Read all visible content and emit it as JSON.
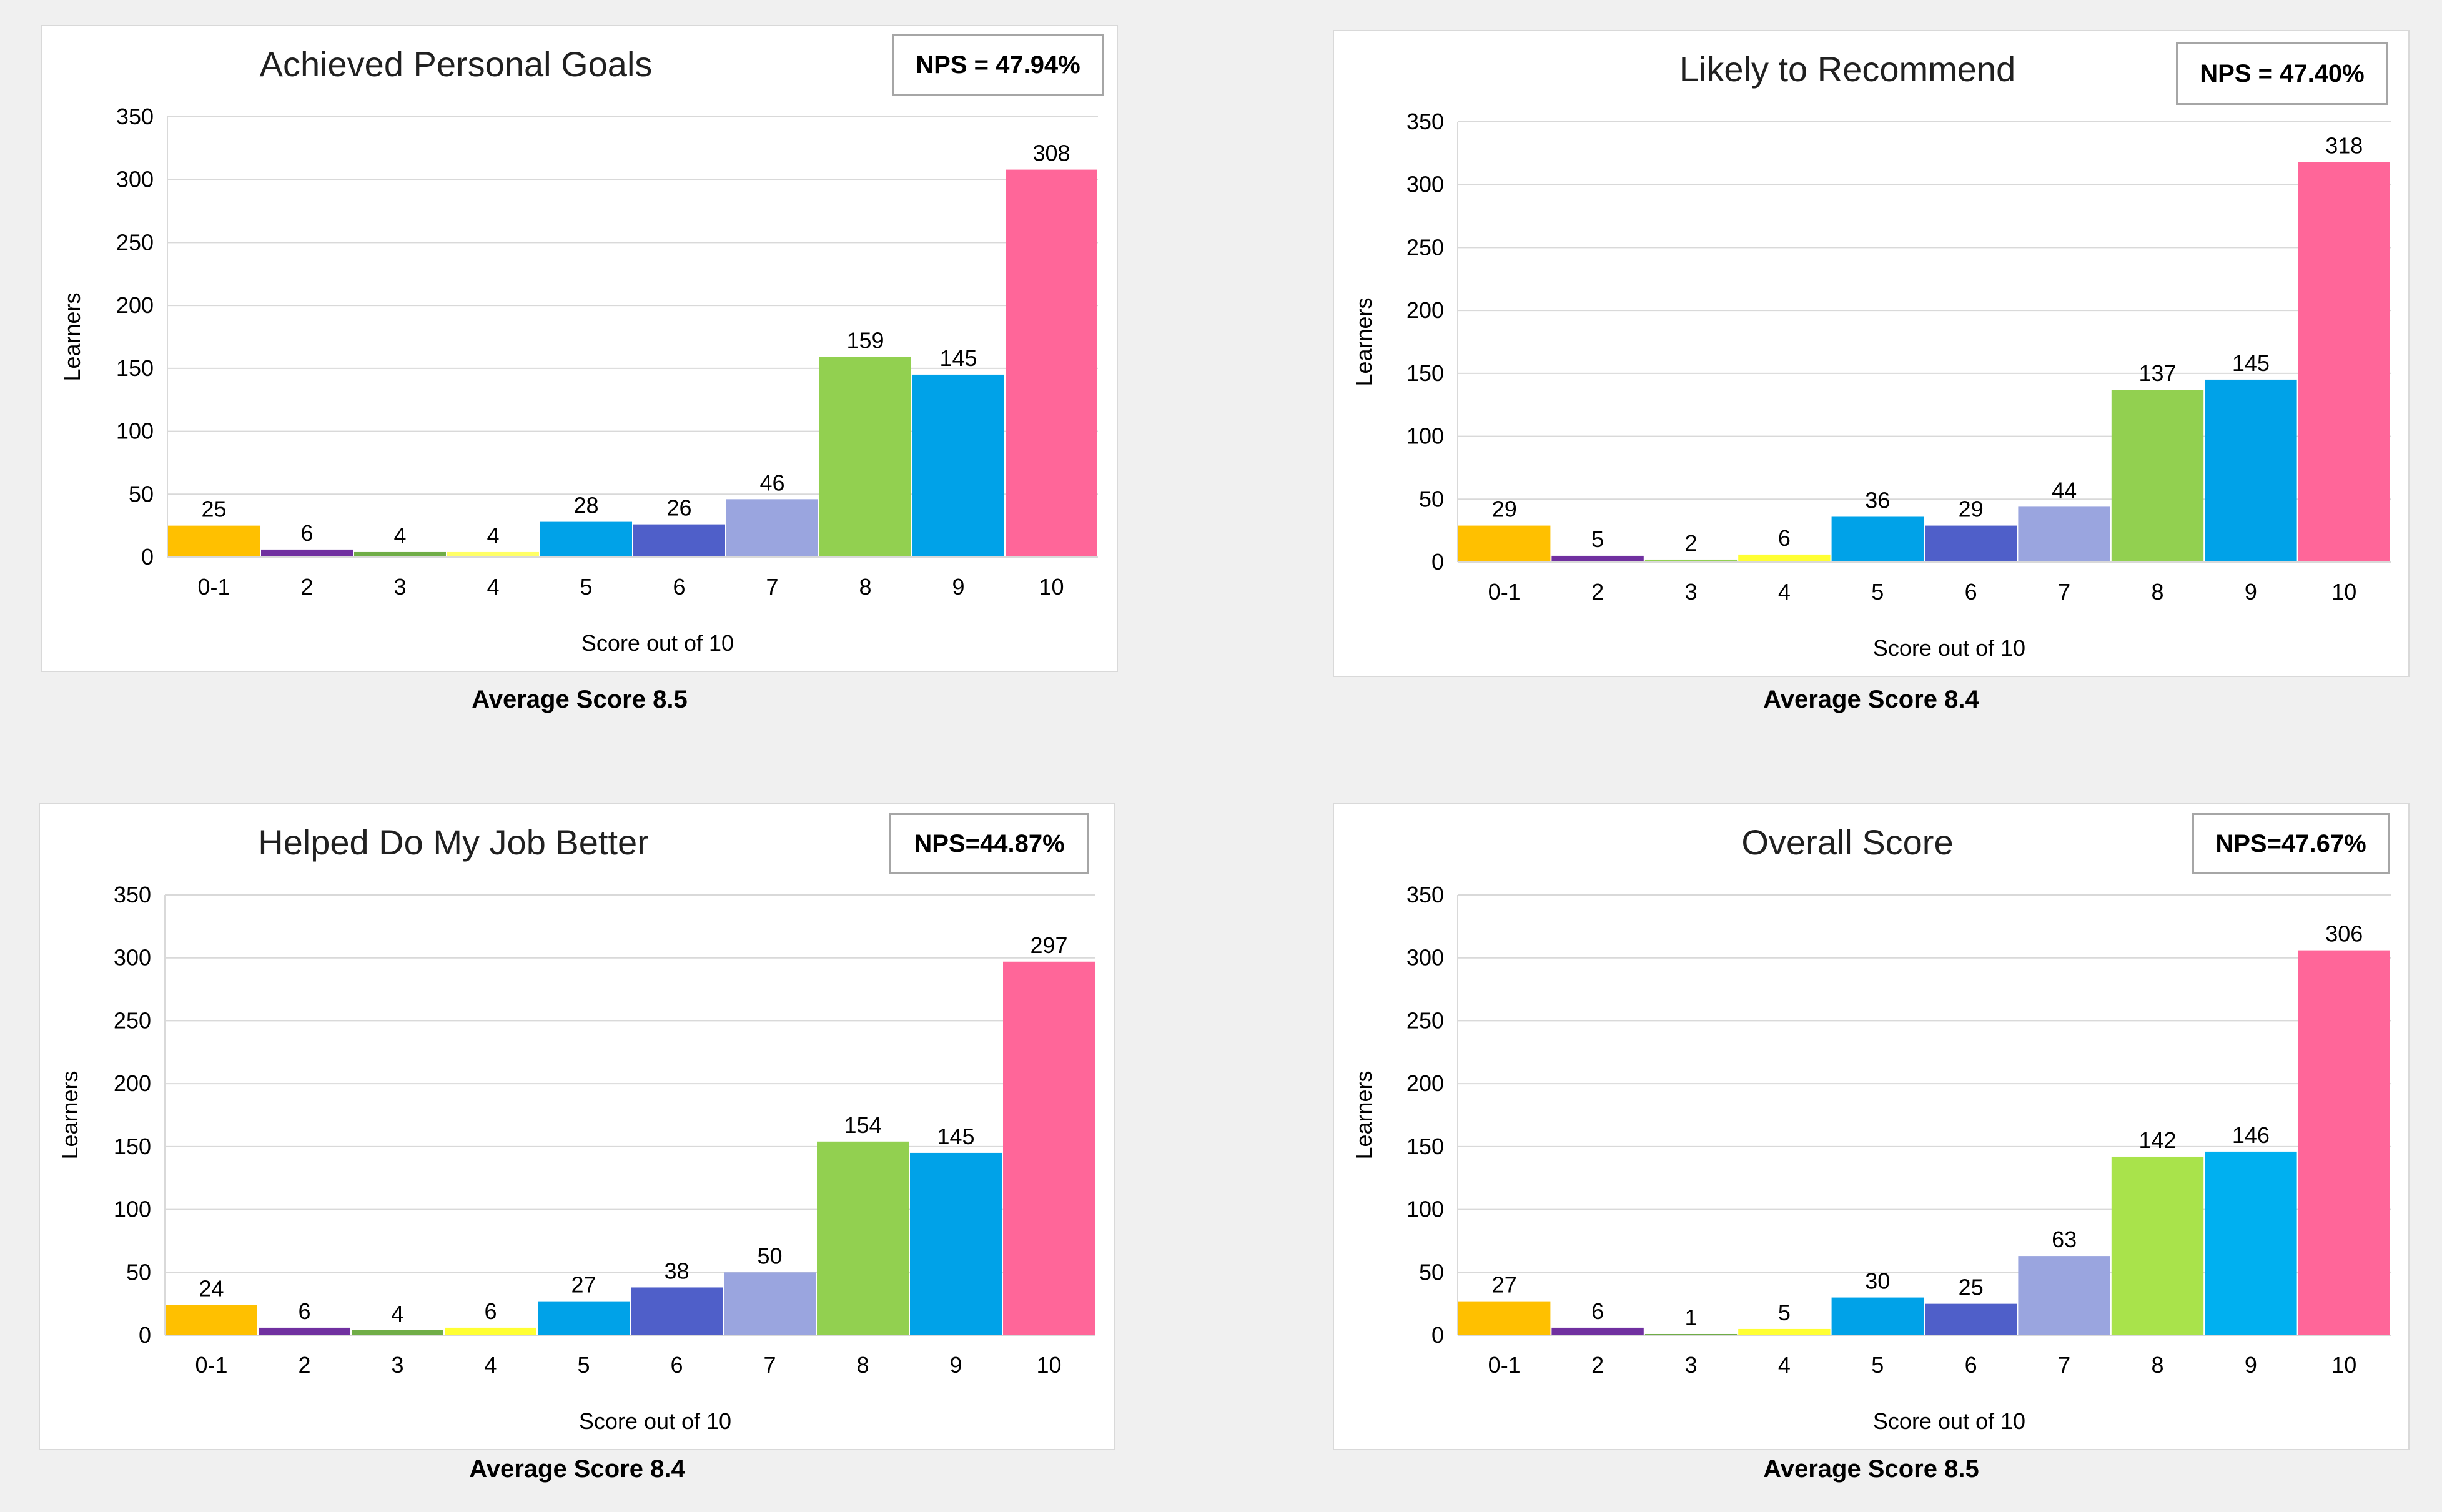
{
  "chart_data": [
    {
      "type": "bar",
      "title": "Achieved Personal Goals",
      "annotation": "NPS = 47.94%",
      "footer": "Average Score 8.5",
      "xlabel": "Score out of 10",
      "ylabel": "Learners",
      "ylim": [
        0,
        350
      ],
      "yticks": [
        0,
        50,
        100,
        150,
        200,
        250,
        300,
        350
      ],
      "grid": true,
      "categories": [
        "0-1",
        "2",
        "3",
        "4",
        "5",
        "6",
        "7",
        "8",
        "9",
        "10"
      ],
      "values": [
        25,
        6,
        4,
        4,
        28,
        26,
        46,
        159,
        145,
        308
      ],
      "colors": [
        "#ffc000",
        "#7030a0",
        "#70ad47",
        "#ffff66",
        "#00a2e8",
        "#4f5fc9",
        "#9aa5df",
        "#92d050",
        "#00a2e8",
        "#ff6699"
      ]
    },
    {
      "type": "bar",
      "title": "Likely to Recommend",
      "annotation": "NPS = 47.40%",
      "footer": "Average Score 8.4",
      "xlabel": "Score out of 10",
      "ylabel": "Learners",
      "ylim": [
        0,
        350
      ],
      "yticks": [
        0,
        50,
        100,
        150,
        200,
        250,
        300,
        350
      ],
      "grid": true,
      "categories": [
        "0-1",
        "2",
        "3",
        "4",
        "5",
        "6",
        "7",
        "8",
        "9",
        "10"
      ],
      "values": [
        29,
        5,
        2,
        6,
        36,
        29,
        44,
        137,
        145,
        318
      ],
      "colors": [
        "#ffc000",
        "#7030a0",
        "#92d050",
        "#ffff33",
        "#00a2e8",
        "#4f5fc9",
        "#9aa5df",
        "#92d050",
        "#00a2e8",
        "#ff6699"
      ]
    },
    {
      "type": "bar",
      "title": "Helped Do My Job Better",
      "annotation": "NPS=44.87%",
      "footer": "Average Score 8.4",
      "xlabel": "Score out of 10",
      "ylabel": "Learners",
      "ylim": [
        0,
        350
      ],
      "yticks": [
        0,
        50,
        100,
        150,
        200,
        250,
        300,
        350
      ],
      "grid": true,
      "categories": [
        "0-1",
        "2",
        "3",
        "4",
        "5",
        "6",
        "7",
        "8",
        "9",
        "10"
      ],
      "values": [
        24,
        6,
        4,
        6,
        27,
        38,
        50,
        154,
        145,
        297
      ],
      "colors": [
        "#ffc000",
        "#7030a0",
        "#70ad47",
        "#ffff33",
        "#00a2e8",
        "#4f5fc9",
        "#9aa5df",
        "#92d050",
        "#00a2e8",
        "#ff6699"
      ]
    },
    {
      "type": "bar",
      "title": "Overall Score",
      "annotation": "NPS=47.67%",
      "footer": "Average Score 8.5",
      "xlabel": "Score out of 10",
      "ylabel": "Learners",
      "ylim": [
        0,
        350
      ],
      "yticks": [
        0,
        50,
        100,
        150,
        200,
        250,
        300,
        350
      ],
      "grid": true,
      "categories": [
        "0-1",
        "2",
        "3",
        "4",
        "5",
        "6",
        "7",
        "8",
        "9",
        "10"
      ],
      "values": [
        27,
        6,
        1,
        5,
        30,
        25,
        63,
        142,
        146,
        306
      ],
      "colors": [
        "#ffc000",
        "#7030a0",
        "#70ad47",
        "#ffff33",
        "#00a2e8",
        "#4f5fc9",
        "#9aa5df",
        "#a9e34b",
        "#00b0f0",
        "#ff6699"
      ]
    }
  ]
}
